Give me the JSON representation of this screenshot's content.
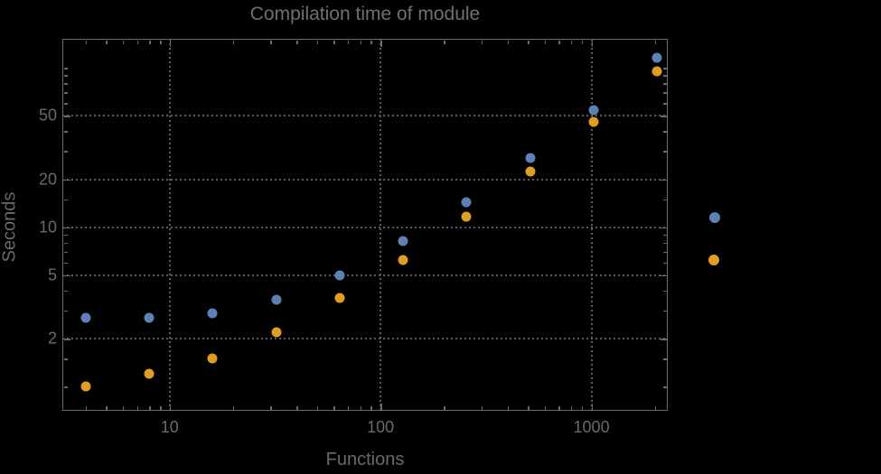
{
  "chart_data": {
    "type": "scatter",
    "title": "Compilation time of module",
    "xlabel": "Functions",
    "ylabel": "Seconds",
    "x_scale": "log",
    "y_scale": "log",
    "xlim": [
      3.1,
      2300
    ],
    "ylim": [
      0.705,
      152
    ],
    "grid": "dotted gray lines at labeled major ticks, frame ticks on all four sides pointing inward",
    "background_color": "#000000",
    "text_color": "#6a6a6a",
    "grid_color": "#5c5c5c",
    "frame_color": "#696969",
    "x": [
      4,
      8,
      16,
      32,
      64,
      128,
      256,
      512,
      1024,
      2048
    ],
    "series": [
      {
        "name": "series-1-blue",
        "color": "#5E81B5",
        "values": [
          2.7,
          2.7,
          2.9,
          3.5,
          5.0,
          8.2,
          14.3,
          27,
          54,
          116
        ]
      },
      {
        "name": "series-2-orange",
        "color": "#E19C24",
        "values": [
          1.0,
          1.2,
          1.5,
          2.2,
          3.6,
          6.2,
          11.7,
          22.4,
          46,
          95
        ]
      }
    ],
    "x_ticks": {
      "values": [
        10,
        100,
        1000
      ],
      "labels": [
        "10",
        "100",
        "1000"
      ]
    },
    "y_ticks": {
      "values": [
        2,
        5,
        10,
        20,
        50
      ],
      "labels": [
        "2",
        "5",
        "10",
        "20",
        "50"
      ]
    },
    "legend": {
      "position": "right-outside-frame",
      "note": "marker dots only, no visible label text",
      "items": [
        {
          "label": "",
          "color": "#5E81B5"
        },
        {
          "label": "",
          "color": "#E19C24"
        }
      ]
    }
  }
}
